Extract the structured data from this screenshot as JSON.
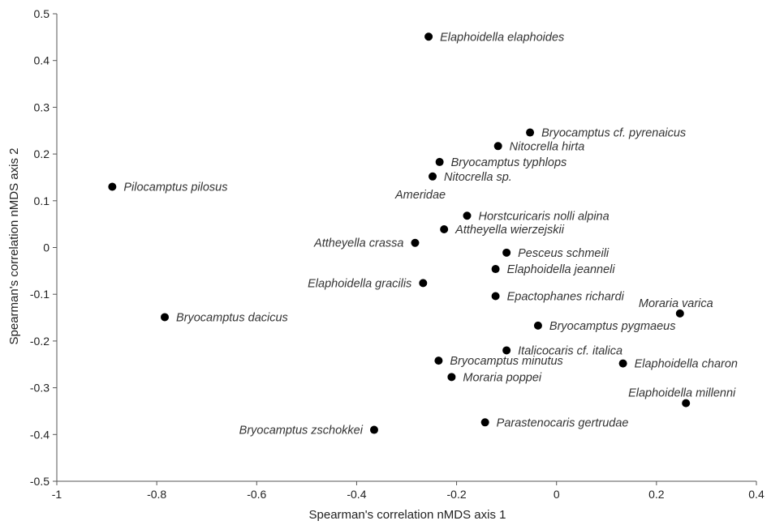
{
  "chart_data": {
    "type": "scatter",
    "title": "",
    "xlabel": "Spearman's correlation nMDS axis 1",
    "ylabel": "Spearman's correlation nMDS axis 2",
    "xlim": [
      -1,
      0.4
    ],
    "ylim": [
      -0.5,
      0.5
    ],
    "x_ticks": [
      -1,
      -0.8,
      -0.6,
      -0.4,
      -0.2,
      0,
      0.2,
      0.4
    ],
    "y_ticks": [
      -0.5,
      -0.4,
      -0.3,
      -0.2,
      -0.1,
      0,
      0.1,
      0.2,
      0.3,
      0.4,
      0.5
    ],
    "x_tick_labels": [
      "-1",
      "-0.8",
      "-0.6",
      "-0.4",
      "-0.2",
      "0",
      "0.2",
      "0.4"
    ],
    "y_tick_labels": [
      "-0.5",
      "-0.4",
      "-0.3",
      "-0.2",
      "-0.1",
      "0",
      "0.1",
      "0.2",
      "0.3",
      "0.4",
      "0.5"
    ],
    "grid": false,
    "marker_color": "#000000",
    "points": [
      {
        "label": "Elaphoidella elaphoides",
        "x": -0.256,
        "y": 0.451,
        "label_side": "right"
      },
      {
        "label": "Bryocamptus cf. pyrenaicus",
        "x": -0.053,
        "y": 0.246,
        "label_side": "right"
      },
      {
        "label": "Nitocrella hirta",
        "x": -0.117,
        "y": 0.217,
        "label_side": "right"
      },
      {
        "label": "Bryocamptus typhlops",
        "x": -0.234,
        "y": 0.183,
        "label_side": "right"
      },
      {
        "label": "Nitocrella sp.",
        "x": -0.248,
        "y": 0.152,
        "label_side": "right"
      },
      {
        "label": "Ameridae",
        "x": null,
        "y": null,
        "label_only": true
      },
      {
        "label": "Pilocamptus pilosus",
        "x": -0.889,
        "y": 0.13,
        "label_side": "right"
      },
      {
        "label": "Horstcuricaris nolli alpina",
        "x": -0.179,
        "y": 0.068,
        "label_side": "right"
      },
      {
        "label": "Attheyella wierzejskii",
        "x": -0.225,
        "y": 0.039,
        "label_side": "right"
      },
      {
        "label": "Attheyella crassa",
        "x": -0.283,
        "y": 0.01,
        "label_side": "left"
      },
      {
        "label": "Pesceus schmeili",
        "x": -0.1,
        "y": -0.011,
        "label_side": "right"
      },
      {
        "label": "Elaphoidella jeanneli",
        "x": -0.122,
        "y": -0.046,
        "label_side": "right"
      },
      {
        "label": "Elaphoidella gracilis",
        "x": -0.267,
        "y": -0.076,
        "label_side": "left"
      },
      {
        "label": "Epactophanes richardi",
        "x": -0.122,
        "y": -0.104,
        "label_side": "right"
      },
      {
        "label": "Moraria varica",
        "x": 0.247,
        "y": -0.141,
        "label_side": "above"
      },
      {
        "label": "Bryocamptus dacicus",
        "x": -0.784,
        "y": -0.149,
        "label_side": "right"
      },
      {
        "label": "Bryocamptus pygmaeus",
        "x": -0.037,
        "y": -0.167,
        "label_side": "right"
      },
      {
        "label": "Italicocaris cf. italica",
        "x": -0.1,
        "y": -0.22,
        "label_side": "right"
      },
      {
        "label": "Bryocamptus minutus",
        "x": -0.236,
        "y": -0.242,
        "label_side": "right"
      },
      {
        "label": "Elaphoidella charon",
        "x": 0.133,
        "y": -0.248,
        "label_side": "right"
      },
      {
        "label": "Moraria poppei",
        "x": -0.21,
        "y": -0.277,
        "label_side": "right"
      },
      {
        "label": "Elaphoidella millenni",
        "x": 0.259,
        "y": -0.333,
        "label_side": "above"
      },
      {
        "label": "Parastenocaris gertrudae",
        "x": -0.143,
        "y": -0.374,
        "label_side": "right"
      },
      {
        "label": "Bryocamptus zschokkei",
        "x": -0.365,
        "y": -0.39,
        "label_side": "left"
      }
    ]
  }
}
